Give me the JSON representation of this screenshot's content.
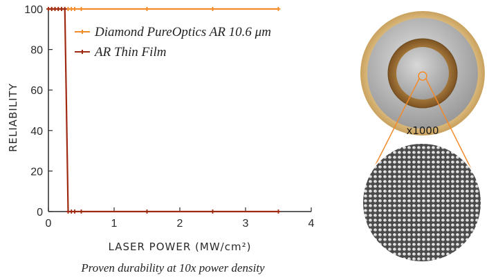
{
  "chart_data": {
    "type": "line",
    "xlabel": "LASER POWER (MW/cm²)",
    "ylabel": "RELIABILITY",
    "xlim": [
      0,
      4
    ],
    "ylim": [
      0,
      100
    ],
    "x_ticks": [
      "0",
      "1",
      "2",
      "3",
      "4"
    ],
    "y_ticks": [
      "0",
      "20",
      "40",
      "60",
      "80",
      "100"
    ],
    "grid": false,
    "legend_position": "top-right",
    "series": [
      {
        "name": "Diamond PureOptics AR 10.6 μm",
        "color": "#f28a2a",
        "x": [
          0,
          0.05,
          0.1,
          0.15,
          0.2,
          0.25,
          0.3,
          0.35,
          0.4,
          0.5,
          1.5,
          2.5,
          3.5
        ],
        "y": [
          100,
          100,
          100,
          100,
          100,
          100,
          100,
          100,
          100,
          100,
          100,
          100,
          100
        ]
      },
      {
        "name": "AR Thin Film",
        "color": "#9e2a12",
        "x": [
          0,
          0.05,
          0.1,
          0.15,
          0.2,
          0.25,
          0.3,
          0.35,
          0.4,
          0.5,
          1.5,
          2.5,
          3.5
        ],
        "y": [
          100,
          100,
          100,
          100,
          100,
          100,
          0,
          0,
          0,
          0,
          0,
          0,
          0
        ]
      }
    ]
  },
  "caption": "Proven durability at 10x power density",
  "inset": {
    "magnification_label": "x1000",
    "accent_color": "#f28a2a"
  }
}
